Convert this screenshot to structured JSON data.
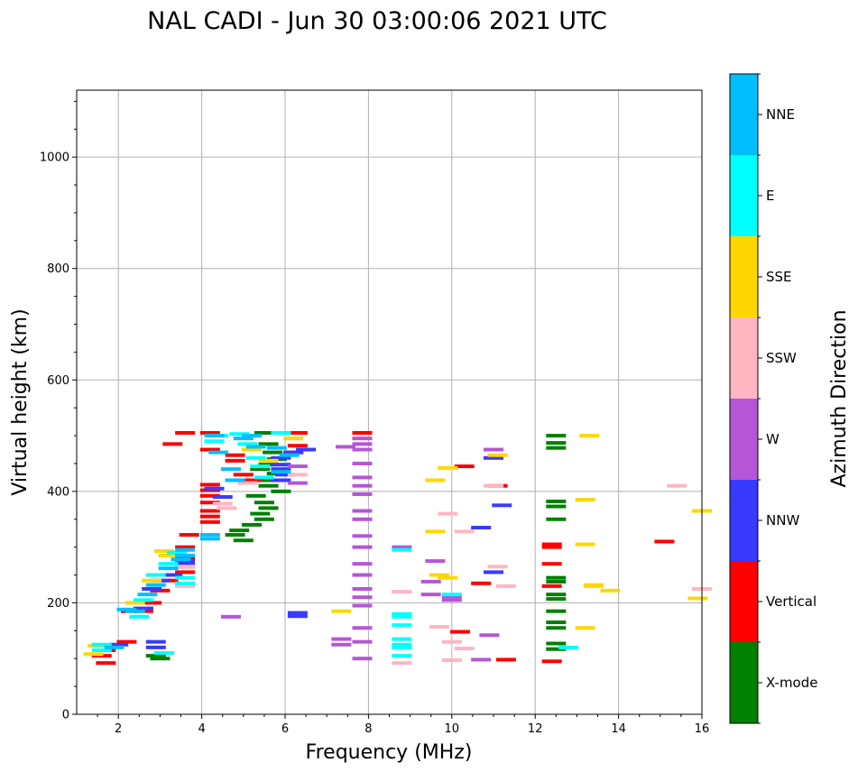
{
  "chart_data": {
    "type": "scatter",
    "title": "NAL CADI - Jun 30 03:00:06 2021 UTC",
    "xlabel": "Frequency (MHz)",
    "ylabel": "Virtual height (km)",
    "xlim": [
      1,
      16
    ],
    "ylim": [
      0,
      1120
    ],
    "x_ticks": [
      2,
      4,
      6,
      8,
      10,
      12,
      14,
      16
    ],
    "y_ticks": [
      0,
      200,
      400,
      600,
      800,
      1000
    ],
    "x_tick_labels": [
      "2",
      "4",
      "6",
      "8",
      "10",
      "12",
      "14",
      "16"
    ],
    "y_tick_labels": [
      "0",
      "200",
      "400",
      "600",
      "800",
      "1000"
    ],
    "grid": true,
    "colorbar": {
      "title": "Azimuth Direction",
      "categories": [
        "X-mode",
        "Vertical",
        "NNW",
        "W",
        "SSW",
        "SSE",
        "E",
        "NNE"
      ],
      "colors": [
        "#008000",
        "#ff0000",
        "#3a3aff",
        "#b556d6",
        "#ffb6c1",
        "#ffd700",
        "#00ffff",
        "#00bfff"
      ]
    },
    "series": [
      {
        "name": "X-mode",
        "points": [
          [
            12.5,
            500
          ],
          [
            12.5,
            487
          ],
          [
            12.5,
            478
          ],
          [
            12.5,
            382
          ],
          [
            12.5,
            373
          ],
          [
            12.5,
            350
          ],
          [
            12.5,
            245
          ],
          [
            12.5,
            238
          ],
          [
            12.5,
            215
          ],
          [
            12.5,
            207
          ],
          [
            12.5,
            185
          ],
          [
            12.5,
            165
          ],
          [
            12.5,
            155
          ],
          [
            12.5,
            127
          ],
          [
            12.5,
            117
          ],
          [
            5.5,
            505
          ],
          [
            5.6,
            485
          ],
          [
            5.7,
            470
          ],
          [
            5.8,
            458
          ],
          [
            5.6,
            448
          ],
          [
            5.4,
            440
          ],
          [
            5.8,
            432
          ],
          [
            5.5,
            420
          ],
          [
            5.6,
            410
          ],
          [
            5.9,
            400
          ],
          [
            5.3,
            392
          ],
          [
            5.5,
            380
          ],
          [
            5.6,
            370
          ],
          [
            5.4,
            360
          ],
          [
            5.5,
            350
          ],
          [
            5.2,
            340
          ],
          [
            4.9,
            330
          ],
          [
            4.8,
            322
          ],
          [
            5.0,
            312
          ],
          [
            2.9,
            105
          ],
          [
            3.0,
            100
          ]
        ]
      },
      {
        "name": "Vertical",
        "points": [
          [
            3.6,
            505
          ],
          [
            4.2,
            505
          ],
          [
            3.3,
            485
          ],
          [
            4.2,
            475
          ],
          [
            4.2,
            412
          ],
          [
            4.2,
            402
          ],
          [
            4.2,
            392
          ],
          [
            4.2,
            380
          ],
          [
            4.2,
            365
          ],
          [
            4.2,
            355
          ],
          [
            4.2,
            345
          ],
          [
            3.7,
            322
          ],
          [
            3.6,
            300
          ],
          [
            3.6,
            280
          ],
          [
            3.6,
            265
          ],
          [
            3.6,
            255
          ],
          [
            3.2,
            240
          ],
          [
            3.0,
            222
          ],
          [
            2.8,
            200
          ],
          [
            2.6,
            185
          ],
          [
            2.3,
            185
          ],
          [
            2.2,
            130
          ],
          [
            1.7,
            115
          ],
          [
            1.6,
            105
          ],
          [
            1.7,
            92
          ],
          [
            4.8,
            465
          ],
          [
            4.8,
            455
          ],
          [
            5.0,
            430
          ],
          [
            5.2,
            420
          ],
          [
            6.3,
            505
          ],
          [
            6.3,
            482
          ],
          [
            6.2,
            470
          ],
          [
            12.4,
            305
          ],
          [
            12.4,
            300
          ],
          [
            12.4,
            270
          ],
          [
            12.4,
            230
          ],
          [
            12.4,
            95
          ],
          [
            15.1,
            310
          ],
          [
            7.85,
            505
          ],
          [
            10.3,
            445
          ],
          [
            10.2,
            148
          ],
          [
            11.1,
            410
          ],
          [
            11.3,
            98
          ],
          [
            10.7,
            235
          ]
        ]
      },
      {
        "name": "NNW",
        "points": [
          [
            6.3,
            182
          ],
          [
            6.3,
            176
          ],
          [
            6.5,
            475
          ],
          [
            6.2,
            470
          ],
          [
            5.9,
            460
          ],
          [
            5.9,
            448
          ],
          [
            6.0,
            430
          ],
          [
            5.9,
            420
          ],
          [
            5.9,
            440
          ],
          [
            3.6,
            275
          ],
          [
            3.6,
            270
          ],
          [
            3.3,
            250
          ],
          [
            3.0,
            240
          ],
          [
            2.8,
            225
          ],
          [
            2.6,
            190
          ],
          [
            2.0,
            125
          ],
          [
            2.9,
            130
          ],
          [
            2.9,
            120
          ],
          [
            11.2,
            375
          ],
          [
            10.7,
            335
          ],
          [
            11.0,
            255
          ],
          [
            11.0,
            460
          ],
          [
            4.3,
            405
          ],
          [
            4.5,
            390
          ]
        ]
      },
      {
        "name": "W",
        "points": [
          [
            7.85,
            495
          ],
          [
            7.85,
            485
          ],
          [
            7.85,
            475
          ],
          [
            7.85,
            450
          ],
          [
            7.85,
            425
          ],
          [
            7.85,
            410
          ],
          [
            7.85,
            395
          ],
          [
            7.85,
            365
          ],
          [
            7.85,
            350
          ],
          [
            7.85,
            320
          ],
          [
            7.85,
            300
          ],
          [
            7.85,
            270
          ],
          [
            7.85,
            250
          ],
          [
            7.85,
            225
          ],
          [
            7.85,
            210
          ],
          [
            7.85,
            195
          ],
          [
            7.85,
            155
          ],
          [
            7.85,
            130
          ],
          [
            7.85,
            100
          ],
          [
            7.45,
            480
          ],
          [
            7.35,
            135
          ],
          [
            7.35,
            125
          ],
          [
            4.7,
            175
          ],
          [
            6.3,
            445
          ],
          [
            6.3,
            415
          ],
          [
            8.8,
            300
          ],
          [
            9.6,
            275
          ],
          [
            9.5,
            238
          ],
          [
            9.5,
            215
          ],
          [
            10.0,
            210
          ],
          [
            10.0,
            205
          ],
          [
            10.9,
            142
          ],
          [
            11.0,
            475
          ],
          [
            10.7,
            98
          ]
        ]
      },
      {
        "name": "SSW",
        "points": [
          [
            8.8,
            220
          ],
          [
            8.8,
            92
          ],
          [
            9.9,
            360
          ],
          [
            10.3,
            328
          ],
          [
            10.0,
            130
          ],
          [
            10.3,
            118
          ],
          [
            11.3,
            230
          ],
          [
            11.1,
            265
          ],
          [
            11.0,
            410
          ],
          [
            15.4,
            410
          ],
          [
            16.0,
            225
          ],
          [
            10.0,
            97
          ],
          [
            9.7,
            157
          ],
          [
            4.5,
            378
          ],
          [
            4.6,
            370
          ],
          [
            5.1,
            415
          ],
          [
            6.3,
            430
          ],
          [
            3.6,
            265
          ],
          [
            3.6,
            230
          ]
        ]
      },
      {
        "name": "SSE",
        "points": [
          [
            13.3,
            500
          ],
          [
            13.2,
            385
          ],
          [
            13.2,
            305
          ],
          [
            13.4,
            232
          ],
          [
            13.4,
            230
          ],
          [
            13.2,
            155
          ],
          [
            13.8,
            222
          ],
          [
            15.9,
            208
          ],
          [
            16.0,
            365
          ],
          [
            9.9,
            442
          ],
          [
            9.6,
            420
          ],
          [
            9.6,
            328
          ],
          [
            9.7,
            250
          ],
          [
            9.9,
            245
          ],
          [
            11.1,
            465
          ],
          [
            7.35,
            185
          ],
          [
            3.1,
            293
          ],
          [
            3.2,
            285
          ],
          [
            2.8,
            240
          ],
          [
            2.4,
            200
          ],
          [
            1.5,
            123
          ],
          [
            1.4,
            108
          ],
          [
            5.2,
            475
          ],
          [
            5.6,
            455
          ],
          [
            6.2,
            495
          ]
        ]
      },
      {
        "name": "E",
        "points": [
          [
            8.8,
            180
          ],
          [
            8.8,
            175
          ],
          [
            8.8,
            160
          ],
          [
            8.8,
            135
          ],
          [
            8.8,
            125
          ],
          [
            8.8,
            120
          ],
          [
            8.8,
            105
          ],
          [
            8.8,
            295
          ],
          [
            10.0,
            215
          ],
          [
            12.8,
            120
          ],
          [
            3.6,
            245
          ],
          [
            3.6,
            235
          ],
          [
            3.4,
            290
          ],
          [
            3.2,
            270
          ],
          [
            2.9,
            250
          ],
          [
            2.6,
            205
          ],
          [
            2.5,
            175
          ],
          [
            1.6,
            125
          ],
          [
            1.6,
            115
          ],
          [
            3.1,
            110
          ],
          [
            4.4,
            500
          ],
          [
            4.3,
            490
          ],
          [
            4.9,
            503
          ],
          [
            5.1,
            485
          ],
          [
            5.3,
            460
          ],
          [
            5.9,
            505
          ],
          [
            5.4,
            445
          ],
          [
            5.5,
            425
          ]
        ]
      },
      {
        "name": "NNE",
        "points": [
          [
            4.2,
            322
          ],
          [
            4.2,
            315
          ],
          [
            3.6,
            295
          ],
          [
            3.6,
            285
          ],
          [
            3.5,
            278
          ],
          [
            3.2,
            262
          ],
          [
            2.9,
            232
          ],
          [
            2.7,
            215
          ],
          [
            1.9,
            120
          ],
          [
            4.3,
            500
          ],
          [
            4.4,
            470
          ],
          [
            5.0,
            495
          ],
          [
            5.2,
            500
          ],
          [
            5.3,
            480
          ],
          [
            5.8,
            478
          ],
          [
            6.1,
            465
          ],
          [
            5.9,
            435
          ],
          [
            4.7,
            440
          ],
          [
            4.8,
            420
          ],
          [
            2.4,
            185
          ],
          [
            2.2,
            188
          ]
        ]
      }
    ]
  }
}
